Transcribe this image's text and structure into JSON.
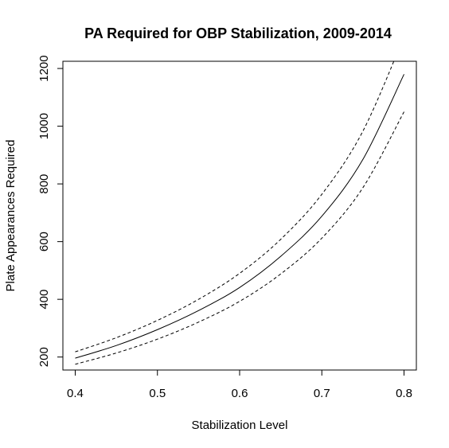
{
  "chart_data": {
    "type": "line",
    "title": "PA Required for OBP Stabilization, 2009-2014",
    "xlabel": "Stabilization Level",
    "ylabel": "Plate Appearances Required",
    "xlim": [
      0.385,
      0.815
    ],
    "ylim": [
      155,
      1225
    ],
    "xticks": [
      0.4,
      0.5,
      0.6,
      0.7,
      0.8
    ],
    "xtick_labels": [
      "0.4",
      "0.5",
      "0.6",
      "0.7",
      "0.8"
    ],
    "yticks": [
      200,
      400,
      600,
      800,
      1000,
      1200
    ],
    "ytick_labels": [
      "200",
      "400",
      "600",
      "800",
      "1000",
      "1200"
    ],
    "grid": false,
    "legend": "none",
    "x": [
      0.4,
      0.45,
      0.5,
      0.55,
      0.6,
      0.65,
      0.7,
      0.75,
      0.8
    ],
    "series": [
      {
        "style": "dashed",
        "values": [
          218,
          267,
          327,
          400,
          490,
          608,
          764,
          983,
          1310
        ]
      },
      {
        "style": "solid",
        "values": [
          196,
          240,
          295,
          361,
          441,
          549,
          688,
          885,
          1180
        ]
      },
      {
        "style": "dashed",
        "values": [
          175,
          214,
          262,
          321,
          393,
          488,
          612,
          787,
          1050
        ]
      }
    ]
  }
}
